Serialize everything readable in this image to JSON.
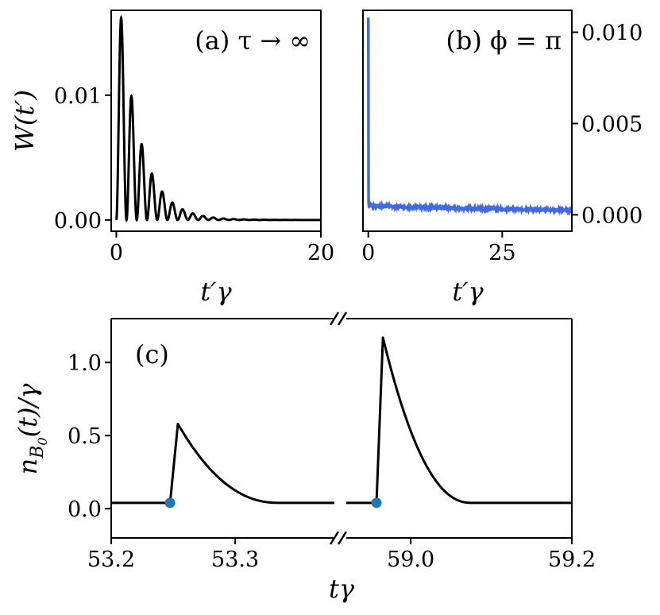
{
  "chart_data": [
    {
      "panel": "a",
      "type": "line",
      "annotation": "(a) τ → ∞",
      "xlabel": "t′γ",
      "ylabel": "W(t′)",
      "xlim": [
        -0.5,
        20
      ],
      "ylim": [
        -0.0009,
        0.0168
      ],
      "xticks": [
        0,
        20
      ],
      "xtick_labels": [
        "0",
        "20"
      ],
      "yticks": [
        0.0,
        0.01
      ],
      "ytick_labels": [
        "0.00",
        "0.01"
      ],
      "grid": false,
      "series": [
        {
          "color": "#000000",
          "description_points": {
            "peaks_x": [
              0.5,
              1.5,
              2.5,
              3.5,
              4.5,
              5.5,
              6.5,
              7.5,
              8.5,
              9.5,
              10.5,
              11.5
            ],
            "peaks_y": [
              0.0161,
              0.0098,
              0.006,
              0.0037,
              0.0023,
              0.0014,
              0.0009,
              0.0006,
              0.0004,
              0.0002,
              0.0001,
              7e-05
            ]
          }
        }
      ]
    },
    {
      "panel": "b",
      "type": "line",
      "annotation": "(b) ϕ = π",
      "xlabel": "t′γ",
      "ylabel": "",
      "xlim": [
        -1,
        38
      ],
      "ylim": [
        -0.0009,
        0.0112
      ],
      "xticks": [
        0,
        25
      ],
      "xtick_labels": [
        "0",
        "25"
      ],
      "yticks": [
        0.0,
        0.005,
        0.01
      ],
      "ytick_labels": [
        "0.000",
        "0.005",
        "0.010"
      ],
      "yaxis_side": "right",
      "grid": false,
      "series": [
        {
          "color": "#4169e1",
          "x": [
            0,
            0.05,
            0.15,
            0.3,
            5,
            10,
            15,
            20,
            25,
            30,
            35,
            38
          ],
          "y": [
            0.0108,
            0.0007,
            0.0005,
            0.0005,
            0.00045,
            0.0004,
            0.00035,
            0.0003,
            0.00026,
            0.00022,
            0.00018,
            0.00016
          ]
        }
      ]
    },
    {
      "panel": "c",
      "type": "line",
      "annotation": "(c)",
      "xlabel": "tγ",
      "ylabel": "n_B0(t)/γ",
      "broken_x_axis": true,
      "segments": [
        {
          "xlim": [
            53.2,
            53.38
          ],
          "xticks": [
            53.2,
            53.3
          ],
          "xtick_labels": [
            "53.2",
            "53.3"
          ]
        },
        {
          "xlim": [
            58.92,
            59.2
          ],
          "xticks": [
            59.0,
            59.2
          ],
          "xtick_labels": [
            "59.0",
            "59.2"
          ]
        }
      ],
      "ylim": [
        -0.2,
        1.3
      ],
      "yticks": [
        0.0,
        0.5,
        1.0
      ],
      "ytick_labels": [
        "0.0",
        "0.5",
        "1.0"
      ],
      "grid": false,
      "series": [
        {
          "color": "#000000",
          "pulses": [
            {
              "t0": 53.2475,
              "jump_end": 53.2538,
              "peak": 0.58,
              "decay_end": 53.335,
              "baseline": 0.04
            },
            {
              "t0": 58.9575,
              "jump_end": 58.9655,
              "peak": 1.17,
              "decay_end": 59.075,
              "baseline": 0.04
            }
          ]
        }
      ],
      "markers": [
        {
          "x": 53.2475,
          "y": 0.04,
          "color": "#1f77b4"
        },
        {
          "x": 58.9575,
          "y": 0.04,
          "color": "#1f77b4"
        }
      ]
    }
  ]
}
